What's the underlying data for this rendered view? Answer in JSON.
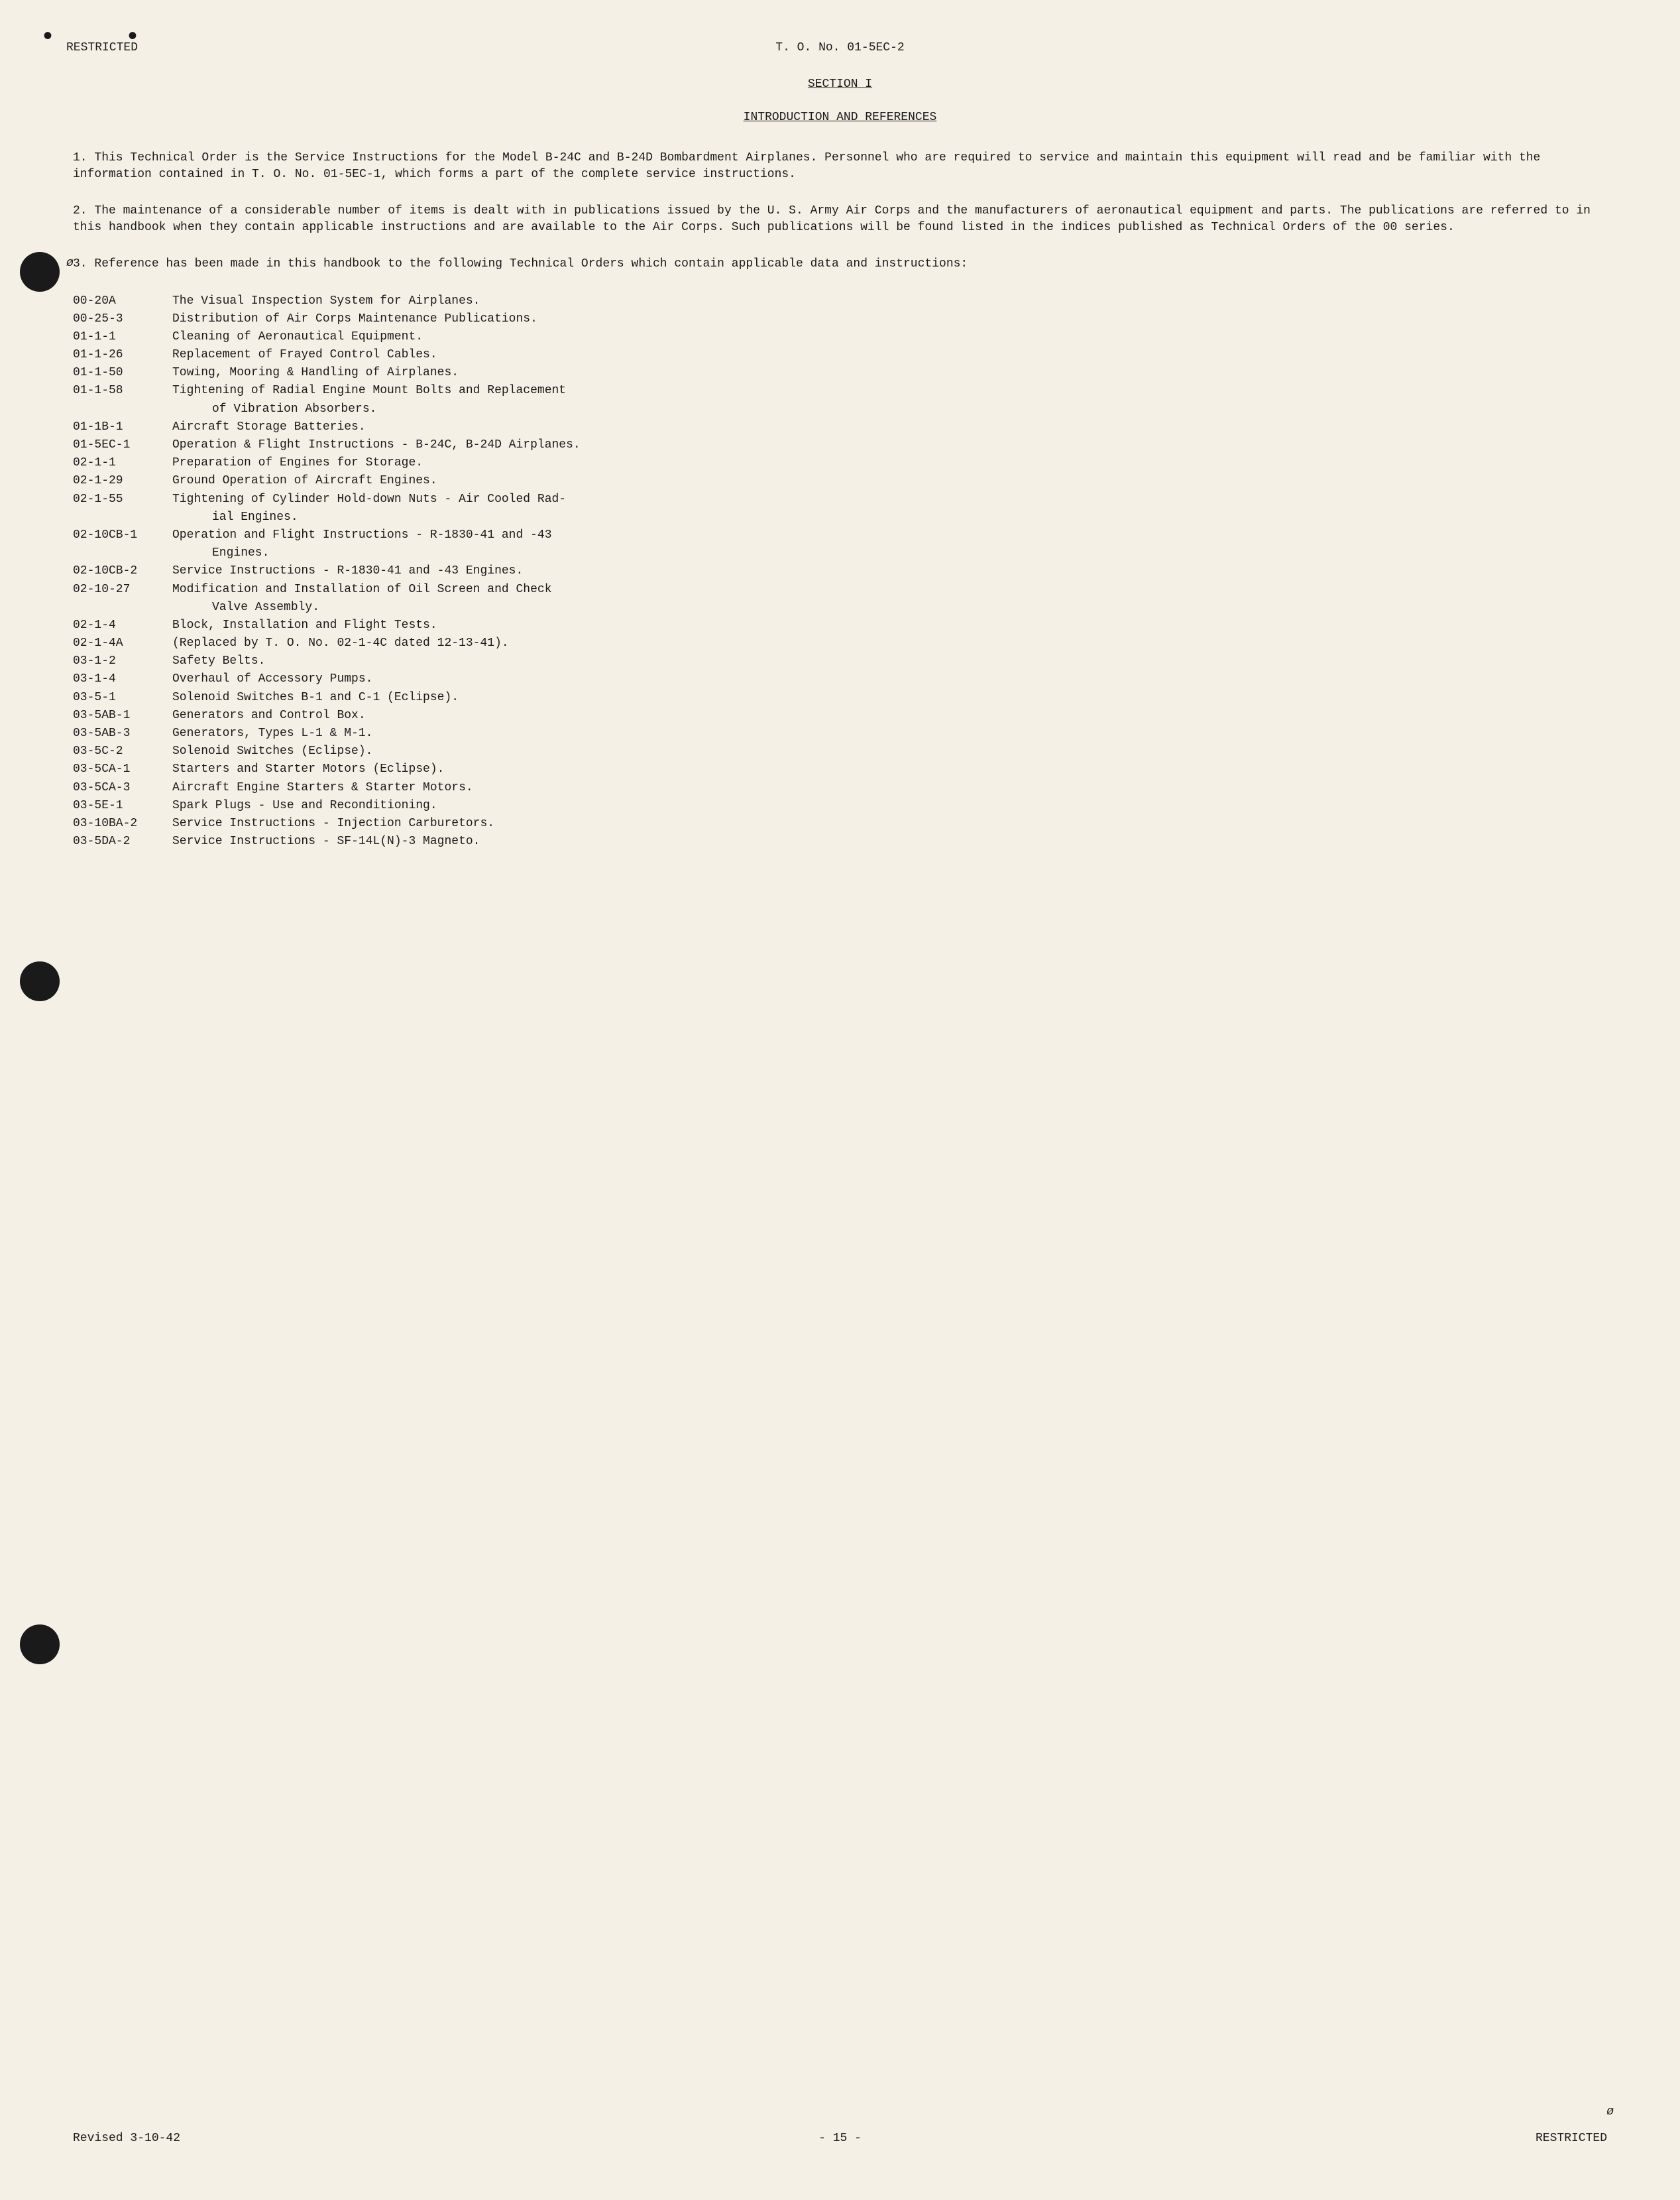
{
  "header": {
    "classification": "RESTRICTED",
    "documentNumber": "T. O. No. 01-5EC-2"
  },
  "section": {
    "number": "SECTION I",
    "title": "INTRODUCTION AND REFERENCES"
  },
  "paragraphs": {
    "p1": "1.   This Technical Order is the Service Instructions for the Model B-24C and B-24D Bombardment Airplanes.  Personnel who are required to service and maintain this equipment will read and be familiar with the information contained in T. O. No. 01-5EC-1, which forms a part of the complete service instructions.",
    "p2": "2.   The maintenance of a considerable number of items is dealt with in publications issued by the U. S. Army Air Corps and the manufacturers of aeronautical equipment and parts.  The publications are referred to in this handbook when they contain applicable instructions and are available to the Air Corps.  Such publications will be found listed in the indices published as Technical Orders of the 00 series.",
    "p3": "3.   Reference has been made in this handbook to the following Technical Orders which contain applicable data and instructions:"
  },
  "references": [
    {
      "code": "00-20A",
      "desc": "The Visual Inspection System for Airplanes."
    },
    {
      "code": "00-25-3",
      "desc": "Distribution of Air Corps Maintenance Publications."
    },
    {
      "code": "01-1-1",
      "desc": "Cleaning of Aeronautical Equipment."
    },
    {
      "code": "01-1-26",
      "desc": "Replacement of Frayed Control Cables."
    },
    {
      "code": "01-1-50",
      "desc": "Towing, Mooring & Handling of Airplanes."
    },
    {
      "code": "01-1-58",
      "desc": "Tightening of Radial Engine Mount Bolts and Replacement"
    },
    {
      "code": "",
      "desc": "of Vibration Absorbers.",
      "indent": true
    },
    {
      "code": "01-1B-1",
      "desc": "Aircraft Storage Batteries."
    },
    {
      "code": "01-5EC-1",
      "desc": "Operation & Flight Instructions - B-24C, B-24D Airplanes."
    },
    {
      "code": "02-1-1",
      "desc": "Preparation of Engines for Storage."
    },
    {
      "code": "02-1-29",
      "desc": "Ground Operation of Aircraft Engines."
    },
    {
      "code": "02-1-55",
      "desc": "Tightening of Cylinder Hold-down Nuts - Air Cooled Rad-"
    },
    {
      "code": "",
      "desc": "ial Engines.",
      "indent": true
    },
    {
      "code": "02-10CB-1",
      "desc": "Operation and Flight Instructions - R-1830-41 and -43"
    },
    {
      "code": "",
      "desc": "Engines.",
      "indent": true
    },
    {
      "code": "02-10CB-2",
      "desc": "Service Instructions - R-1830-41 and -43 Engines."
    },
    {
      "code": "02-10-27",
      "desc": "Modification and Installation of Oil Screen and Check"
    },
    {
      "code": "",
      "desc": "Valve Assembly.",
      "indent": true
    },
    {
      "code": "02-1-4",
      "desc": "Block, Installation and Flight Tests."
    },
    {
      "code": "02-1-4A",
      "desc": "(Replaced by T. O. No. 02-1-4C dated 12-13-41)."
    },
    {
      "code": "03-1-2",
      "desc": "Safety Belts."
    },
    {
      "code": "03-1-4",
      "desc": "Overhaul of Accessory Pumps."
    },
    {
      "code": "03-5-1",
      "desc": "Solenoid Switches B-1 and C-1 (Eclipse)."
    },
    {
      "code": "03-5AB-1",
      "desc": "Generators and Control Box."
    },
    {
      "code": "03-5AB-3",
      "desc": "Generators, Types L-1 & M-1."
    },
    {
      "code": "03-5C-2",
      "desc": "Solenoid Switches (Eclipse)."
    },
    {
      "code": "03-5CA-1",
      "desc": "Starters and Starter Motors (Eclipse)."
    },
    {
      "code": "03-5CA-3",
      "desc": "Aircraft Engine Starters & Starter Motors."
    },
    {
      "code": "03-5E-1",
      "desc": "Spark Plugs - Use and Reconditioning."
    },
    {
      "code": "03-10BA-2",
      "desc": "Service Instructions - Injection Carburetors."
    },
    {
      "code": "03-5DA-2",
      "desc": "Service Instructions - SF-14L(N)-3 Magneto."
    }
  ],
  "footer": {
    "revised": "Revised 3-10-42",
    "pageNumber": "- 15 -",
    "classification": "RESTRICTED"
  },
  "marks": {
    "phi": "ø",
    "dots": "•  •"
  },
  "colors": {
    "background": "#f5f0e6",
    "text": "#1a1a1a",
    "punchHole": "#1a1a1a"
  },
  "typography": {
    "fontFamily": "Courier New, Courier, monospace",
    "fontSize": 18,
    "lineHeight": 1.4
  }
}
